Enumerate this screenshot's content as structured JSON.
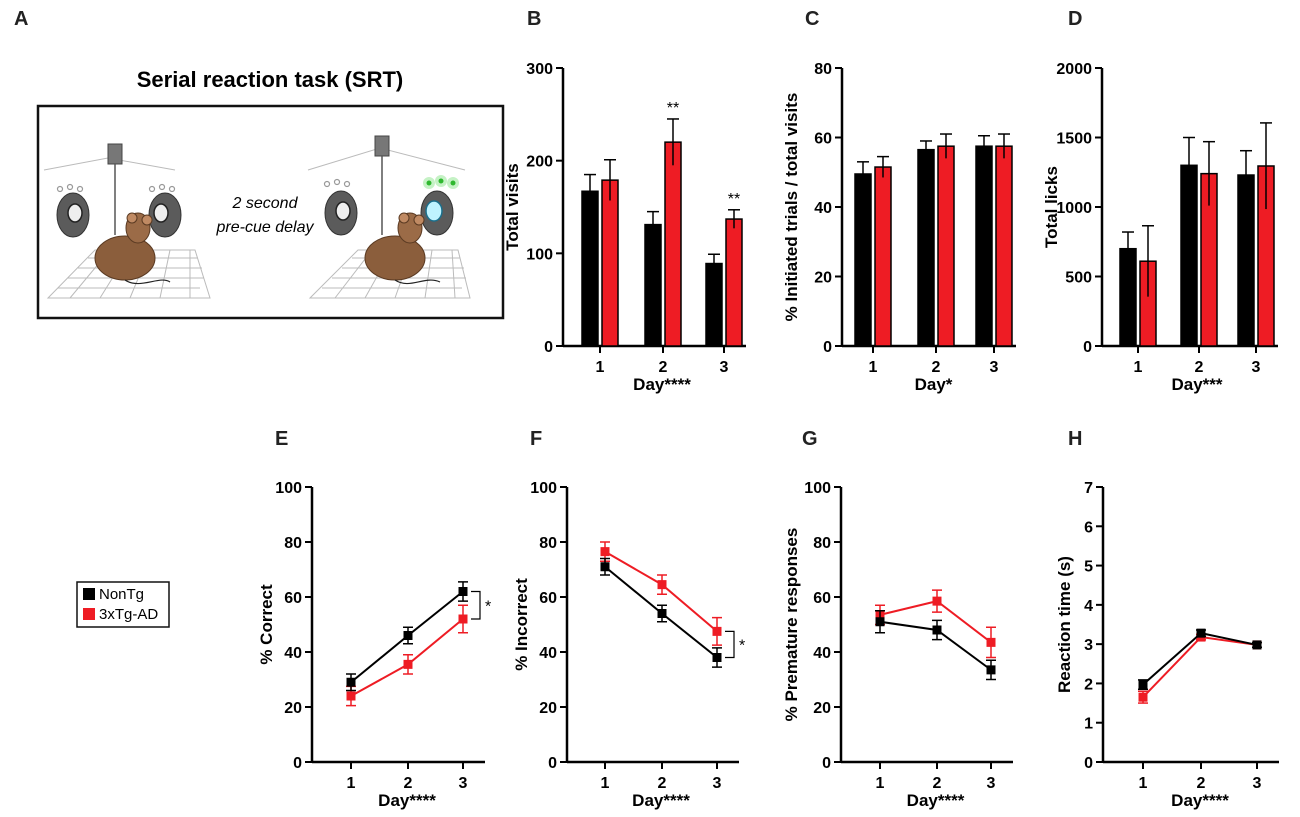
{
  "panel_letters": [
    "A",
    "B",
    "C",
    "D",
    "E",
    "F",
    "G",
    "H"
  ],
  "srt": {
    "title": "Serial reaction task (SRT)",
    "delay_line1": "2 second",
    "delay_line2": "pre-cue delay"
  },
  "legend": {
    "items": [
      {
        "name": "NonTg",
        "color": "#000000"
      },
      {
        "name": "3xTg-AD",
        "color": "#ee1c24"
      }
    ]
  },
  "chart_data": [
    {
      "panel": "B",
      "type": "bar",
      "categories": [
        "1",
        "2",
        "3"
      ],
      "xlabel": "Day****",
      "ylabel": "Total visits",
      "ylim": [
        0,
        300
      ],
      "yticks": [
        0,
        100,
        200,
        300
      ],
      "series": [
        {
          "name": "NonTg",
          "values": [
            167,
            131,
            89
          ],
          "errors": [
            18,
            14,
            10
          ]
        },
        {
          "name": "3xTg-AD",
          "values": [
            179,
            220,
            137
          ],
          "errors": [
            22,
            25,
            10
          ]
        }
      ],
      "annotations": [
        {
          "category": "2",
          "text": "**"
        },
        {
          "category": "3",
          "text": "**"
        }
      ]
    },
    {
      "panel": "C",
      "type": "bar",
      "categories": [
        "1",
        "2",
        "3"
      ],
      "xlabel": "Day*",
      "ylabel": "% Initiated trials / total visits",
      "ylim": [
        0,
        80
      ],
      "yticks": [
        0,
        20,
        40,
        60,
        80
      ],
      "series": [
        {
          "name": "NonTg",
          "values": [
            49.5,
            56.5,
            57.5
          ],
          "errors": [
            3.5,
            2.5,
            3
          ]
        },
        {
          "name": "3xTg-AD",
          "values": [
            51.5,
            57.5,
            57.5
          ],
          "errors": [
            3,
            3.5,
            3.5
          ]
        }
      ],
      "annotations": []
    },
    {
      "panel": "D",
      "type": "bar",
      "categories": [
        "1",
        "2",
        "3"
      ],
      "xlabel": "Day***",
      "ylabel": "Total licks",
      "ylim": [
        0,
        2000
      ],
      "yticks": [
        0,
        500,
        1000,
        1500,
        2000
      ],
      "series": [
        {
          "name": "NonTg",
          "values": [
            700,
            1300,
            1230
          ],
          "errors": [
            120,
            200,
            175
          ]
        },
        {
          "name": "3xTg-AD",
          "values": [
            610,
            1240,
            1295
          ],
          "errors": [
            255,
            230,
            310
          ]
        }
      ],
      "annotations": []
    },
    {
      "panel": "E",
      "type": "line",
      "x": [
        "1",
        "2",
        "3"
      ],
      "xlabel": "Day****",
      "ylabel": "% Correct",
      "ylim": [
        0,
        100
      ],
      "yticks": [
        0,
        20,
        40,
        60,
        80,
        100
      ],
      "series": [
        {
          "name": "NonTg",
          "values": [
            29,
            46,
            62
          ],
          "errors": [
            3,
            3,
            3.5
          ]
        },
        {
          "name": "3xTg-AD",
          "values": [
            24,
            35.5,
            52
          ],
          "errors": [
            3.5,
            3.5,
            5
          ]
        }
      ],
      "significance": "*"
    },
    {
      "panel": "F",
      "type": "line",
      "x": [
        "1",
        "2",
        "3"
      ],
      "xlabel": "Day****",
      "ylabel": "% Incorrect",
      "ylim": [
        0,
        100
      ],
      "yticks": [
        0,
        20,
        40,
        60,
        80,
        100
      ],
      "series": [
        {
          "name": "NonTg",
          "values": [
            71,
            54,
            38
          ],
          "errors": [
            3,
            3,
            3.5
          ]
        },
        {
          "name": "3xTg-AD",
          "values": [
            76.5,
            64.5,
            47.5
          ],
          "errors": [
            3.5,
            3.5,
            5
          ]
        }
      ],
      "significance": "*"
    },
    {
      "panel": "G",
      "type": "line",
      "x": [
        "1",
        "2",
        "3"
      ],
      "xlabel": "Day****",
      "ylabel": "% Premature responses",
      "ylim": [
        0,
        100
      ],
      "yticks": [
        0,
        20,
        40,
        60,
        80,
        100
      ],
      "series": [
        {
          "name": "NonTg",
          "values": [
            51,
            48,
            33.5
          ],
          "errors": [
            4,
            3.5,
            3.5
          ]
        },
        {
          "name": "3xTg-AD",
          "values": [
            53.5,
            58.5,
            43.5
          ],
          "errors": [
            3.5,
            4,
            5.5
          ]
        }
      ],
      "significance": ""
    },
    {
      "panel": "H",
      "type": "line",
      "x": [
        "1",
        "2",
        "3"
      ],
      "xlabel": "Day****",
      "ylabel": "Reaction time (s)",
      "ylim": [
        0,
        7
      ],
      "yticks": [
        0,
        1,
        2,
        3,
        4,
        5,
        6,
        7
      ],
      "series": [
        {
          "name": "NonTg",
          "values": [
            1.97,
            3.28,
            2.98
          ],
          "errors": [
            0.12,
            0.08,
            0.06
          ]
        },
        {
          "name": "3xTg-AD",
          "values": [
            1.65,
            3.18,
            2.98
          ],
          "errors": [
            0.15,
            0.07,
            0.06
          ]
        }
      ],
      "significance": ""
    }
  ]
}
